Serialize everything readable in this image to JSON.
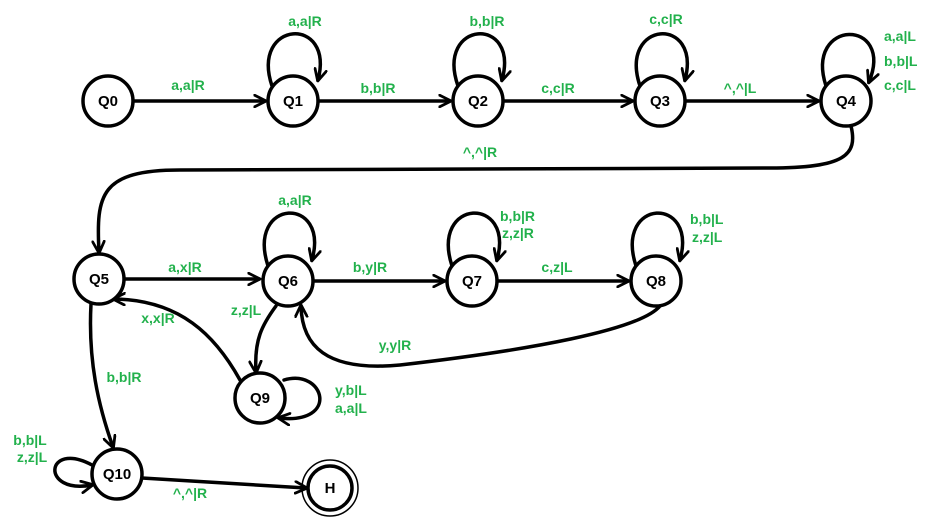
{
  "diagram": {
    "label_color": "#22b14c",
    "line_color": "#000000",
    "states": [
      {
        "id": "Q0",
        "label": "Q0"
      },
      {
        "id": "Q1",
        "label": "Q1"
      },
      {
        "id": "Q2",
        "label": "Q2"
      },
      {
        "id": "Q3",
        "label": "Q3"
      },
      {
        "id": "Q4",
        "label": "Q4"
      },
      {
        "id": "Q5",
        "label": "Q5"
      },
      {
        "id": "Q6",
        "label": "Q6"
      },
      {
        "id": "Q7",
        "label": "Q7"
      },
      {
        "id": "Q8",
        "label": "Q8"
      },
      {
        "id": "Q9",
        "label": "Q9"
      },
      {
        "id": "Q10",
        "label": "Q10"
      },
      {
        "id": "H",
        "label": "H",
        "accepting": true
      }
    ],
    "transitions": [
      {
        "from": "Q0",
        "to": "Q1",
        "labels": [
          "a,a|R"
        ]
      },
      {
        "from": "Q1",
        "to": "Q1",
        "labels": [
          "a,a|R"
        ]
      },
      {
        "from": "Q1",
        "to": "Q2",
        "labels": [
          "b,b|R"
        ]
      },
      {
        "from": "Q2",
        "to": "Q2",
        "labels": [
          "b,b|R"
        ]
      },
      {
        "from": "Q2",
        "to": "Q3",
        "labels": [
          "c,c|R"
        ]
      },
      {
        "from": "Q3",
        "to": "Q3",
        "labels": [
          "c,c|R"
        ]
      },
      {
        "from": "Q3",
        "to": "Q4",
        "labels": [
          "^,^|L"
        ]
      },
      {
        "from": "Q4",
        "to": "Q4",
        "labels": [
          "a,a|L",
          "b,b|L",
          "c,c|L"
        ]
      },
      {
        "from": "Q4",
        "to": "Q5",
        "labels": [
          "^,^|R"
        ]
      },
      {
        "from": "Q5",
        "to": "Q6",
        "labels": [
          "a,x|R"
        ]
      },
      {
        "from": "Q6",
        "to": "Q6",
        "labels": [
          "a,a|R"
        ]
      },
      {
        "from": "Q6",
        "to": "Q7",
        "labels": [
          "b,y|R"
        ]
      },
      {
        "from": "Q7",
        "to": "Q7",
        "labels": [
          "b,b|R",
          "z,z|R"
        ]
      },
      {
        "from": "Q7",
        "to": "Q8",
        "labels": [
          "c,z|L"
        ]
      },
      {
        "from": "Q8",
        "to": "Q8",
        "labels": [
          "b,b|L",
          "z,z|L"
        ]
      },
      {
        "from": "Q8",
        "to": "Q6",
        "labels": [
          "y,y|R"
        ]
      },
      {
        "from": "Q6",
        "to": "Q9",
        "labels": [
          "z,z|L"
        ]
      },
      {
        "from": "Q9",
        "to": "Q9",
        "labels": [
          "y,b|L",
          "a,a|L"
        ]
      },
      {
        "from": "Q9",
        "to": "Q5",
        "labels": [
          "x,x|R"
        ]
      },
      {
        "from": "Q5",
        "to": "Q10",
        "labels": [
          "b,b|R"
        ]
      },
      {
        "from": "Q10",
        "to": "Q10",
        "labels": [
          "b,b|L",
          "z,z|L"
        ]
      },
      {
        "from": "Q10",
        "to": "H",
        "labels": [
          "^,^|R"
        ]
      }
    ]
  }
}
